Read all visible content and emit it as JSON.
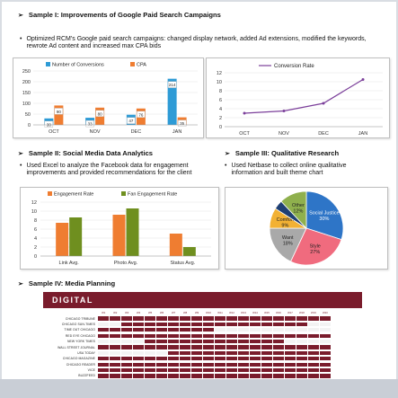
{
  "sections": {
    "s1": {
      "title": "Sample I: Improvements of Google Paid Search Campaigns",
      "body": "Optimized RCM’s Google paid search campaigns: changed display network, added Ad extensions, modified the keywords, rewrote Ad content and increased max CPA bids"
    },
    "s2": {
      "title": "Sample II: Social Media Data Analytics",
      "body": "Used Excel to analyze the Facebook data for engagement improvements and provided recommendations for the client"
    },
    "s3": {
      "title": "Sample III: Qualitative Research",
      "body": "Used Netbase to collect online qualitative information and built theme chart"
    },
    "s4": {
      "title": "Sample IV: Media Planning"
    }
  },
  "colors": {
    "blue": "#2e9bd6",
    "orange": "#ef7d31",
    "purple": "#7b3f9a",
    "olive": "#6f8f1f",
    "maroon": "#7a1c2c"
  },
  "chart_data": [
    {
      "type": "bar",
      "categories": [
        "OCT",
        "NOV",
        "DEC",
        "JAN"
      ],
      "series": [
        {
          "name": "Number of Conversions",
          "values": [
            30,
            33,
            47,
            214
          ]
        },
        {
          "name": "CPA",
          "values": [
            90,
            80,
            76,
            35
          ]
        }
      ],
      "ylim": [
        0,
        250
      ],
      "yticks": [
        0,
        50,
        100,
        150,
        200,
        250
      ],
      "legend": "top"
    },
    {
      "type": "line",
      "categories": [
        "OCT",
        "NOV",
        "DEC",
        "JAN"
      ],
      "series": [
        {
          "name": "Conversion Rate",
          "values": [
            3.0,
            3.5,
            5.2,
            10.5
          ]
        }
      ],
      "ylim": [
        0,
        12
      ],
      "yticks": [
        0,
        2,
        4,
        6,
        8,
        10,
        12
      ],
      "legend": "top"
    },
    {
      "type": "bar",
      "categories": [
        "Link Avg.",
        "Photo Avg.",
        "Status Avg."
      ],
      "series": [
        {
          "name": "Engagement Rate",
          "values": [
            7.4,
            9.2,
            5.0
          ]
        },
        {
          "name": "Fan Engagement Rate",
          "values": [
            8.6,
            10.6,
            2.0
          ]
        }
      ],
      "ylim": [
        0,
        12
      ],
      "yticks": [
        0,
        2,
        4,
        6,
        8,
        10,
        12
      ],
      "legend": "top"
    },
    {
      "type": "pie",
      "slices": [
        {
          "label": "Social Justice",
          "pct": "30%",
          "value": 30,
          "color": "#2e75c7"
        },
        {
          "label": "Style",
          "pct": "27%",
          "value": 27,
          "color": "#f06b7e"
        },
        {
          "label": "Want",
          "pct": "18%",
          "value": 18,
          "color": "#a9a9a9"
        },
        {
          "label": "Comfort",
          "pct": "9%",
          "value": 9,
          "color": "#f2b134"
        },
        {
          "label": "",
          "pct": "",
          "value": 4,
          "color": "#1f3f73"
        },
        {
          "label": "Other",
          "pct": "12%",
          "value": 12,
          "color": "#8fb04d"
        }
      ]
    }
  ],
  "media_plan": {
    "header": "DIGITAL",
    "weeks": [
      "W1",
      "W2",
      "W3",
      "W4",
      "W5",
      "W6",
      "W7",
      "W8",
      "W9",
      "W10",
      "W11",
      "W12",
      "W13",
      "W14",
      "W15",
      "W16",
      "W17",
      "W18",
      "W19",
      "W20"
    ],
    "outlets": [
      {
        "name": "CHICAGO TRIBUNE",
        "on": [
          0,
          1,
          2,
          3,
          4,
          5,
          6,
          7,
          8,
          9,
          10,
          11,
          12,
          13,
          14,
          15,
          16,
          17,
          18,
          19
        ]
      },
      {
        "name": "CHICAGO SUN-TIMES",
        "on": [
          2,
          3,
          4,
          5,
          6,
          7,
          8,
          9,
          10,
          11,
          12,
          13,
          14,
          15,
          16,
          17
        ]
      },
      {
        "name": "TIME OUT CHICAGO",
        "on": [
          0,
          1,
          2,
          3,
          4,
          5,
          6,
          7,
          8,
          9
        ]
      },
      {
        "name": "RED EYE CHICAGO",
        "on": [
          0,
          1,
          2,
          3,
          4,
          5,
          6,
          7,
          8,
          9,
          10,
          11,
          12,
          13,
          14,
          15,
          16,
          17,
          18,
          19
        ]
      },
      {
        "name": "NEW YORK TIMES",
        "on": [
          4,
          5,
          6,
          7,
          8,
          9,
          10,
          11,
          12,
          13,
          14,
          15
        ]
      },
      {
        "name": "WALL STREET JOURNAL",
        "on": [
          0,
          1,
          2,
          3,
          4,
          5,
          6,
          7,
          8,
          9,
          10,
          11,
          12,
          13,
          14,
          15,
          16,
          17,
          18,
          19
        ]
      },
      {
        "name": "USA TODAY",
        "on": [
          6,
          7,
          8,
          9,
          10,
          11,
          12,
          13,
          14,
          15,
          16,
          17,
          18,
          19
        ]
      },
      {
        "name": "CHICAGO MAGAZINE",
        "on": [
          0,
          1,
          2,
          3,
          4,
          5,
          6,
          7,
          8,
          9,
          10,
          11,
          12,
          13,
          14,
          15,
          16,
          17,
          18,
          19
        ]
      },
      {
        "name": "CHICAGO READER",
        "on": [
          0,
          1,
          2,
          3,
          4,
          5,
          6,
          7,
          8,
          9,
          10,
          11,
          12,
          13,
          14,
          15,
          16,
          17,
          18,
          19
        ]
      },
      {
        "name": "VICE",
        "on": [
          0,
          1,
          2,
          3,
          4,
          5,
          6,
          7,
          8,
          9,
          10,
          11,
          12,
          13,
          14,
          15,
          16,
          17,
          18,
          19
        ]
      },
      {
        "name": "BUZZFEED",
        "on": [
          0,
          1,
          2,
          3,
          4,
          5,
          6,
          7,
          8,
          9,
          10,
          11,
          12,
          13,
          14,
          15,
          16,
          17,
          18,
          19
        ]
      }
    ]
  },
  "glyphs": {
    "arrow": "➢",
    "bullet": "•"
  }
}
